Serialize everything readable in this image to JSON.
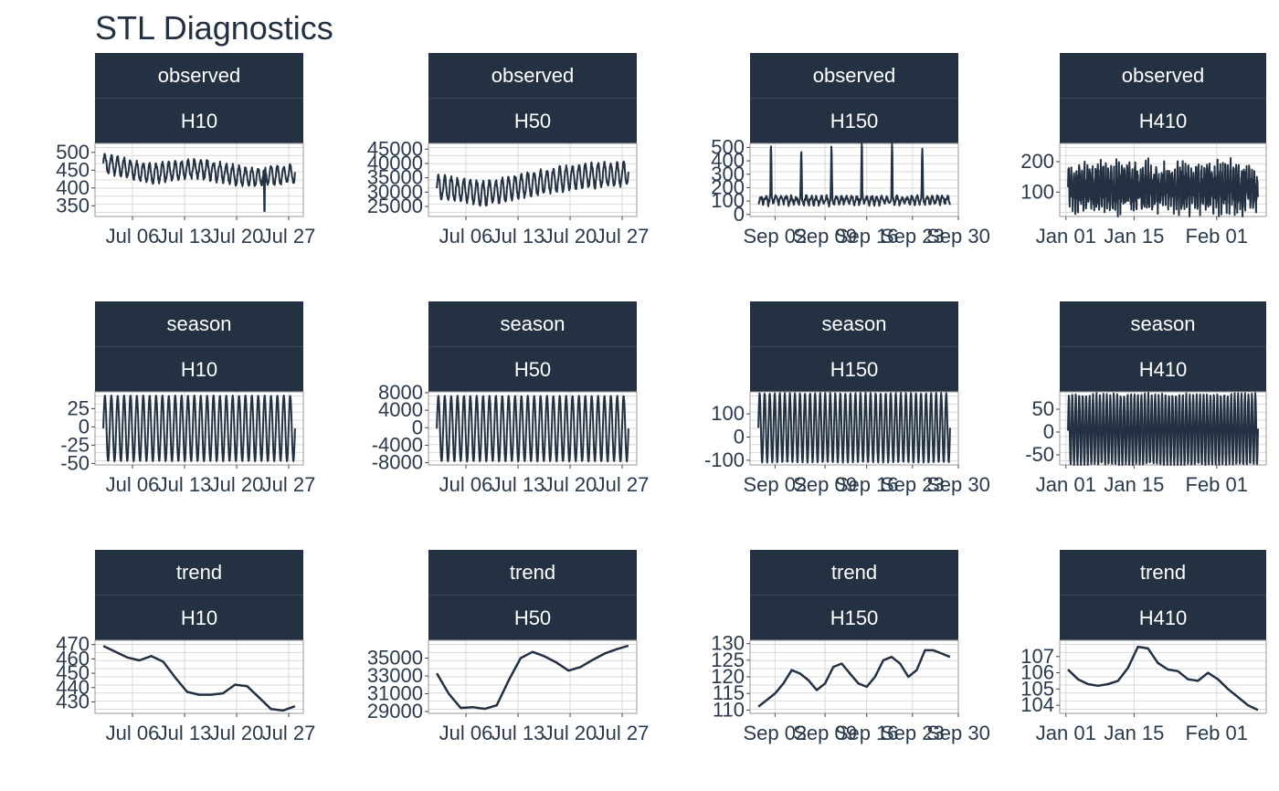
{
  "title": "STL Diagnostics",
  "colors": {
    "strip_bg": "#233142",
    "strip_text": "#ffffff",
    "line": "#233142",
    "grid": "#cccccc",
    "border": "#888888"
  },
  "chart_data": [
    {
      "type": "line",
      "facet_top": "observed",
      "facet_bottom": "H10",
      "x_ticks": [
        "Jul 06",
        "Jul 13",
        "Jul 20",
        "Jul 27"
      ],
      "y_ticks": [
        350,
        400,
        450,
        500
      ],
      "ylim": [
        320,
        525
      ],
      "signal": {
        "kind": "oscillate",
        "base": 455,
        "amp": 50,
        "cycles": 30,
        "trend": [
          470,
          440,
          455,
          430,
          440
        ],
        "noise": 12,
        "drops": [
          [
            0.84,
            335
          ]
        ]
      }
    },
    {
      "type": "line",
      "facet_top": "observed",
      "facet_bottom": "H50",
      "x_ticks": [
        "Jul 06",
        "Jul 13",
        "Jul 20",
        "Jul 27"
      ],
      "y_ticks": [
        25000,
        30000,
        35000,
        40000,
        45000
      ],
      "ylim": [
        21500,
        47000
      ],
      "signal": {
        "kind": "oscillate",
        "base": 33000,
        "amp": 8000,
        "cycles": 30,
        "trend": [
          32000,
          29500,
          33000,
          35500,
          36500
        ],
        "noise": 1500
      }
    },
    {
      "type": "line",
      "facet_top": "observed",
      "facet_bottom": "H150",
      "x_ticks": [
        "Sep 02",
        "Sep 09",
        "Sep 16",
        "Sep 23",
        "Sep 30"
      ],
      "x_tick_offsets": [
        0.12,
        0.36,
        0.56,
        0.78,
        1.0
      ],
      "y_ticks": [
        0,
        100,
        200,
        300,
        400,
        500
      ],
      "ylim": [
        -15,
        530
      ],
      "signal": {
        "kind": "spiky",
        "base": 70,
        "amp": 60,
        "cycles": 38,
        "spike_every": 6,
        "spike_height": 480,
        "noise": 30
      }
    },
    {
      "type": "line",
      "facet_top": "observed",
      "facet_bottom": "H410",
      "x_ticks": [
        "Jan 01",
        "Jan 15",
        "Feb 01"
      ],
      "x_tick_offsets": [
        0.03,
        0.36,
        0.76
      ],
      "y_ticks": [
        100,
        200
      ],
      "ylim": [
        20,
        260
      ],
      "signal": {
        "kind": "dense",
        "base": 115,
        "amp": 70,
        "cycles": 55,
        "noise": 35
      }
    },
    {
      "type": "line",
      "facet_top": "season",
      "facet_bottom": "H10",
      "x_ticks": [
        "Jul 06",
        "Jul 13",
        "Jul 20",
        "Jul 27"
      ],
      "y_ticks": [
        -50,
        -25,
        0,
        25
      ],
      "ylim": [
        -52,
        48
      ],
      "signal": {
        "kind": "sine",
        "base": -2,
        "amp": 45,
        "cycles": 30
      }
    },
    {
      "type": "line",
      "facet_top": "season",
      "facet_bottom": "H50",
      "x_ticks": [
        "Jul 06",
        "Jul 13",
        "Jul 20",
        "Jul 27"
      ],
      "y_ticks": [
        -8000,
        -4000,
        0,
        4000,
        8000
      ],
      "ylim": [
        -8500,
        8200
      ],
      "signal": {
        "kind": "sine",
        "base": -200,
        "amp": 7500,
        "cycles": 30
      }
    },
    {
      "type": "line",
      "facet_top": "season",
      "facet_bottom": "H150",
      "x_ticks": [
        "Sep 02",
        "Sep 09",
        "Sep 16",
        "Sep 23",
        "Sep 30"
      ],
      "x_tick_offsets": [
        0.12,
        0.36,
        0.56,
        0.78,
        1.0
      ],
      "y_ticks": [
        -100,
        0,
        100
      ],
      "ylim": [
        -120,
        195
      ],
      "signal": {
        "kind": "sine",
        "base": 40,
        "amp": 150,
        "cycles": 38
      }
    },
    {
      "type": "line",
      "facet_top": "season",
      "facet_bottom": "H410",
      "x_ticks": [
        "Jan 01",
        "Jan 15",
        "Feb 01"
      ],
      "x_tick_offsets": [
        0.03,
        0.36,
        0.76
      ],
      "y_ticks": [
        -50,
        0,
        50
      ],
      "ylim": [
        -72,
        88
      ],
      "signal": {
        "kind": "sine",
        "base": 5,
        "amp": 78,
        "cycles": 55,
        "noise": 6
      }
    },
    {
      "type": "line",
      "facet_top": "trend",
      "facet_bottom": "H10",
      "x_ticks": [
        "Jul 06",
        "Jul 13",
        "Jul 20",
        "Jul 27"
      ],
      "y_ticks": [
        430,
        440,
        450,
        460,
        470
      ],
      "ylim": [
        422,
        473
      ],
      "y": [
        469,
        465,
        461,
        459,
        462,
        458,
        447,
        437,
        435,
        435,
        436,
        442,
        441,
        433,
        425,
        424,
        427
      ]
    },
    {
      "type": "line",
      "facet_top": "trend",
      "facet_bottom": "H50",
      "x_ticks": [
        "Jul 06",
        "Jul 13",
        "Jul 20",
        "Jul 27"
      ],
      "y_ticks": [
        29000,
        31000,
        33000,
        35000
      ],
      "ylim": [
        28800,
        37000
      ],
      "y": [
        33300,
        31000,
        29400,
        29500,
        29300,
        29700,
        32500,
        35000,
        35700,
        35200,
        34500,
        33600,
        34000,
        34800,
        35500,
        36000,
        36400
      ]
    },
    {
      "type": "line",
      "facet_top": "trend",
      "facet_bottom": "H150",
      "x_ticks": [
        "Sep 02",
        "Sep 09",
        "Sep 16",
        "Sep 23",
        "Sep 30"
      ],
      "x_tick_offsets": [
        0.12,
        0.36,
        0.56,
        0.78,
        1.0
      ],
      "y_ticks": [
        110,
        115,
        120,
        125,
        130
      ],
      "ylim": [
        109,
        131
      ],
      "y": [
        111,
        113,
        115,
        118,
        122,
        121,
        119,
        116,
        118,
        123,
        124,
        121,
        118,
        117,
        120,
        125,
        126,
        124,
        120,
        122,
        128,
        128,
        127,
        126
      ]
    },
    {
      "type": "line",
      "facet_top": "trend",
      "facet_bottom": "H410",
      "x_ticks": [
        "Jan 01",
        "Jan 15",
        "Feb 01"
      ],
      "x_tick_offsets": [
        0.03,
        0.36,
        0.76
      ],
      "y_ticks": [
        104,
        105,
        106,
        107
      ],
      "ylim": [
        103.5,
        108
      ],
      "y": [
        106.2,
        105.6,
        105.3,
        105.2,
        105.3,
        105.5,
        106.3,
        107.6,
        107.5,
        106.6,
        106.2,
        106.1,
        105.6,
        105.5,
        106.0,
        105.6,
        105.0,
        104.5,
        104.0,
        103.7
      ]
    }
  ]
}
